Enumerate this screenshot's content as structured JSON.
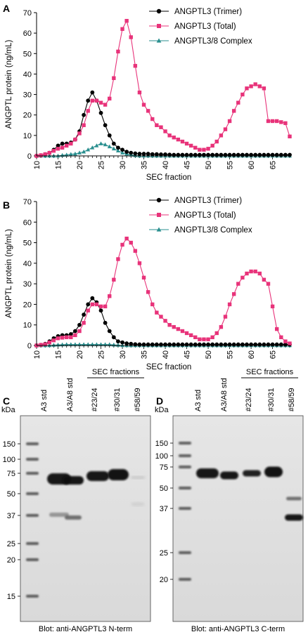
{
  "panels": [
    {
      "label": "A"
    },
    {
      "label": "B"
    },
    {
      "label": "C"
    },
    {
      "label": "D"
    }
  ],
  "chart_data": [
    {
      "type": "line",
      "panel": "A",
      "xlabel": "SEC fraction",
      "ylabel": "ANGPTL protein (ng/mL)",
      "xlim": [
        10,
        69
      ],
      "ylim": [
        0,
        70
      ],
      "xticks": [
        10,
        15,
        20,
        25,
        30,
        35,
        40,
        45,
        50,
        55,
        60,
        65
      ],
      "yticks": [
        0,
        10,
        20,
        30,
        40,
        50,
        60,
        70
      ],
      "legend_position": "top-right",
      "x": [
        10,
        11,
        12,
        13,
        14,
        15,
        16,
        17,
        18,
        19,
        20,
        21,
        22,
        23,
        24,
        25,
        26,
        27,
        28,
        29,
        30,
        31,
        32,
        33,
        34,
        35,
        36,
        37,
        38,
        39,
        40,
        41,
        42,
        43,
        44,
        45,
        46,
        47,
        48,
        49,
        50,
        51,
        52,
        53,
        54,
        55,
        56,
        57,
        58,
        59,
        60,
        61,
        62,
        63,
        64,
        65,
        66,
        67,
        68,
        69
      ],
      "series": [
        {
          "name": "ANGPTL3 (Trimer)",
          "color": "#000000",
          "marker": "circle",
          "values": [
            0,
            0.3,
            0.8,
            1.5,
            3,
            5,
            6,
            6,
            6.5,
            8,
            12,
            20,
            27,
            31,
            27,
            21,
            15,
            10,
            6,
            4,
            3,
            2,
            1.5,
            1.2,
            1,
            1,
            1,
            0.8,
            0.8,
            0.7,
            0.7,
            0.6,
            0.5,
            0.5,
            0.5,
            0.5,
            0.5,
            0.5,
            0.5,
            0.5,
            0.5,
            0.5,
            0.5,
            0.5,
            0.5,
            0.5,
            0.5,
            0.5,
            0.5,
            0.5,
            0.5,
            0.5,
            0.5,
            0.5,
            0.5,
            0.5,
            0.5,
            0.5,
            0.5,
            0.5
          ]
        },
        {
          "name": "ANGPTL3 (Total)",
          "color": "#e8337a",
          "marker": "square",
          "values": [
            0,
            0.3,
            0.8,
            1.5,
            2.5,
            3.5,
            4,
            5,
            6,
            8,
            11,
            15,
            22,
            27,
            27,
            26,
            25,
            28,
            38,
            51,
            62,
            66,
            58,
            44,
            31,
            25,
            22,
            18,
            15,
            14,
            12,
            10,
            9,
            8,
            7,
            6,
            5,
            4,
            3,
            3,
            3.5,
            5,
            7,
            10,
            13,
            17,
            22,
            26,
            30,
            33,
            34,
            35,
            34,
            33,
            17,
            17,
            17,
            16.5,
            16,
            9.5
          ]
        },
        {
          "name": "ANGPTL3/8 Complex",
          "color": "#2a8f8f",
          "marker": "triangle",
          "values": [
            0,
            0,
            0,
            0,
            0,
            0,
            0.3,
            0.5,
            0.8,
            1,
            1.5,
            2,
            3,
            4,
            5,
            6,
            5.5,
            4.5,
            3.5,
            2.5,
            1.5,
            1,
            0.5,
            0.2,
            0,
            0,
            0,
            0,
            0,
            0,
            0,
            0,
            0,
            0,
            0,
            0,
            0,
            0,
            0,
            0,
            0,
            0,
            0,
            0,
            0,
            0,
            0,
            0,
            0,
            0,
            0,
            0,
            0,
            0,
            0,
            0,
            0,
            0,
            0,
            0
          ]
        }
      ]
    },
    {
      "type": "line",
      "panel": "B",
      "xlabel": "SEC fraction",
      "ylabel": "ANGPTL protein (ng/mL)",
      "xlim": [
        10,
        69
      ],
      "ylim": [
        0,
        70
      ],
      "xticks": [
        10,
        15,
        20,
        25,
        30,
        35,
        40,
        45,
        50,
        55,
        60,
        65
      ],
      "yticks": [
        0,
        10,
        20,
        30,
        40,
        50,
        60,
        70
      ],
      "legend_position": "top-right",
      "x": [
        10,
        11,
        12,
        13,
        14,
        15,
        16,
        17,
        18,
        19,
        20,
        21,
        22,
        23,
        24,
        25,
        26,
        27,
        28,
        29,
        30,
        31,
        32,
        33,
        34,
        35,
        36,
        37,
        38,
        39,
        40,
        41,
        42,
        43,
        44,
        45,
        46,
        47,
        48,
        49,
        50,
        51,
        52,
        53,
        54,
        55,
        56,
        57,
        58,
        59,
        60,
        61,
        62,
        63,
        64,
        65,
        66,
        67,
        68,
        69
      ],
      "series": [
        {
          "name": "ANGPTL3 (Trimer)",
          "color": "#000000",
          "marker": "circle",
          "values": [
            0,
            0.3,
            0.8,
            2,
            3.5,
            4.5,
            5,
            5,
            5.5,
            7,
            10,
            15,
            20,
            23,
            21,
            17,
            11,
            7,
            4,
            2,
            1.5,
            1,
            0.8,
            0.6,
            0.5,
            0.5,
            0.5,
            0.5,
            0.5,
            0.5,
            0.5,
            0.5,
            0.5,
            0.5,
            0.5,
            0.5,
            0.5,
            0.5,
            0.5,
            0.5,
            0.5,
            0.5,
            0.5,
            0.5,
            0.5,
            0.5,
            0.5,
            0.5,
            0.5,
            0.5,
            0.5,
            0.5,
            0.5,
            0.5,
            0.5,
            0.5,
            0.5,
            0.5,
            0.5,
            0.5
          ]
        },
        {
          "name": "ANGPTL3 (Total)",
          "color": "#e8337a",
          "marker": "square",
          "values": [
            0,
            0.3,
            0.6,
            1.5,
            2.5,
            3.5,
            3.8,
            4,
            4,
            5,
            7,
            11,
            17,
            20,
            20,
            19,
            19,
            24,
            32,
            42,
            49,
            52,
            50,
            46,
            40,
            33,
            26,
            20,
            16,
            14,
            12,
            10,
            9,
            8,
            7,
            6,
            5,
            4,
            3,
            3,
            3,
            4,
            6,
            9,
            14,
            20,
            25,
            30,
            33,
            35,
            36,
            36,
            35,
            32,
            30,
            19,
            8,
            4,
            2,
            1
          ]
        },
        {
          "name": "ANGPTL3/8 Complex",
          "color": "#2a8f8f",
          "marker": "triangle",
          "values": [
            0,
            0,
            0,
            0,
            0.2,
            0.3,
            0.4,
            0.5,
            0.5,
            0.5,
            0.5,
            0.5,
            0.5,
            0.5,
            0.5,
            0.5,
            0.5,
            0.5,
            0.3,
            0.2,
            0,
            0,
            0,
            0,
            0,
            0,
            0,
            0,
            0,
            0,
            0,
            0,
            0,
            0,
            0,
            0,
            0,
            0,
            0,
            0,
            0,
            0,
            0,
            0,
            0,
            0,
            0,
            0,
            0,
            0,
            0,
            0,
            0,
            0,
            0,
            0,
            0,
            0,
            0,
            0
          ]
        }
      ]
    }
  ],
  "blots": [
    {
      "panel": "C",
      "kda_label": "kDa",
      "markers": [
        "150",
        "100",
        "75",
        "50",
        "37",
        "25",
        "20",
        "15"
      ],
      "marker_kda": [
        150,
        100,
        75,
        50,
        37,
        25,
        20,
        15
      ],
      "lanes": [
        "A3 std",
        "A3/A8 std",
        "#23/24",
        "#30/31",
        "#58/59"
      ],
      "group_label": "SEC fractions",
      "caption": "Blot: anti-ANGPTL3 N-term"
    },
    {
      "panel": "D",
      "kda_label": "kDa",
      "markers": [
        "150",
        "100",
        "75",
        "50",
        "37",
        "25",
        "20"
      ],
      "marker_kda": [
        150,
        100,
        75,
        50,
        37,
        25,
        20
      ],
      "lanes": [
        "A3 std",
        "A3/A8 std",
        "#23/24",
        "#30/31",
        "#58/59"
      ],
      "group_label": "SEC fractions",
      "caption": "Blot: anti-ANGPTL3 C-term"
    }
  ]
}
